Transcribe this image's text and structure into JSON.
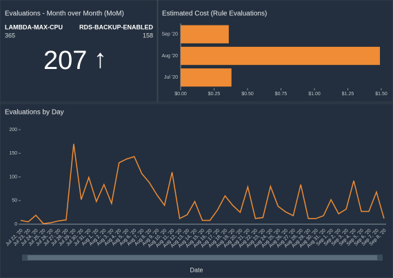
{
  "chart_data": [
    {
      "type": "kpi",
      "title": "Evaluations - Month over Month (MoM)",
      "items": [
        {
          "name": "LAMBDA-MAX-CPU",
          "value": 365
        },
        {
          "name": "RDS-BACKUP-ENABLED",
          "value": 158
        }
      ],
      "value": 207,
      "arrow": "↑"
    },
    {
      "type": "bar",
      "orientation": "horizontal",
      "title": "Estimated Cost (Rule Evaluations)",
      "categories": [
        "Sep '20",
        "Aug '20",
        "Jul '20"
      ],
      "values": [
        0.36,
        1.49,
        0.38
      ],
      "color": "#f08c35",
      "xlim": [
        0,
        1.5
      ],
      "xticks": [
        {
          "value": 0,
          "label": "$0.00"
        },
        {
          "value": 0.25,
          "label": "$0.25"
        },
        {
          "value": 0.5,
          "label": "$0.50"
        },
        {
          "value": 0.75,
          "label": "$0.75"
        },
        {
          "value": 1,
          "label": "$1.00"
        },
        {
          "value": 1.25,
          "label": "$1.25"
        },
        {
          "value": 1.5,
          "label": "$1.50"
        }
      ]
    },
    {
      "type": "line",
      "title": "Evaluations by Day",
      "xlabel": "Date",
      "color": "#f08c35",
      "categories": [
        "Jul 22, '20",
        "Jul 23, '20",
        "Jul 24, '20",
        "Jul 25, '20",
        "Jul 26, '20",
        "Jul 27, '20",
        "Jul 28, '20",
        "Jul 29, '20",
        "Jul 30, '20",
        "Jul 31, '20",
        "Aug 1, '20",
        "Aug 2, '20",
        "Aug 3, '20",
        "Aug 4, '20",
        "Aug 5, '20",
        "Aug 6, '20",
        "Aug 7, '20",
        "Aug 8, '20",
        "Aug 9, '20",
        "Aug 10, '20",
        "Aug 11, '20",
        "Aug 12, '20",
        "Aug 13, '20",
        "Aug 14, '20",
        "Aug 15, '20",
        "Aug 16, '20",
        "Aug 17, '20",
        "Aug 18, '20",
        "Aug 19, '20",
        "Aug 20, '20",
        "Aug 21, '20",
        "Aug 22, '20",
        "Aug 23, '20",
        "Aug 24, '20",
        "Aug 25, '20",
        "Aug 26, '20",
        "Aug 27, '20",
        "Aug 28, '20",
        "Aug 29, '20",
        "Aug 30, '20",
        "Aug 31, '20",
        "Sep 1, '20",
        "Sep 2, '20",
        "Sep 3, '20",
        "Sep 4, '20",
        "Sep 5, '20",
        "Sep 6, '20",
        "Sep 7, '20",
        "Sep 8, '20"
      ],
      "values": [
        8,
        5,
        19,
        1,
        3,
        7,
        9,
        170,
        52,
        99,
        48,
        84,
        44,
        130,
        138,
        143,
        107,
        88,
        62,
        40,
        110,
        12,
        20,
        48,
        8,
        8,
        30,
        60,
        40,
        25,
        79,
        12,
        14,
        80,
        38,
        26,
        18,
        84,
        12,
        12,
        18,
        52,
        22,
        32,
        92,
        27,
        27,
        68,
        12
      ],
      "ylim": [
        0,
        200
      ],
      "yticks": [
        0,
        50,
        100,
        150,
        200
      ]
    }
  ]
}
